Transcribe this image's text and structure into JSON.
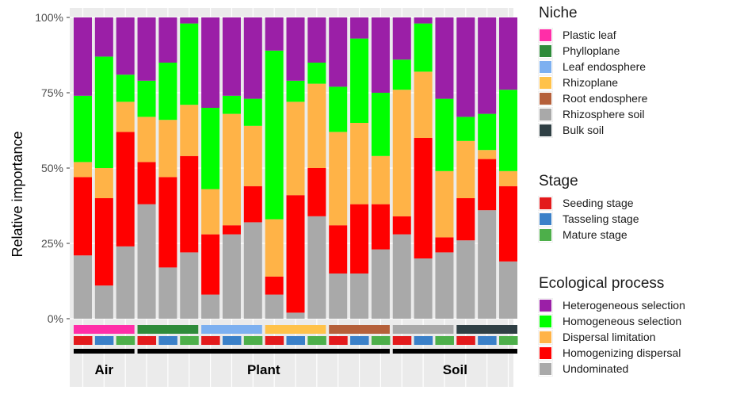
{
  "chart_data": {
    "type": "bar",
    "stacked": true,
    "ylabel": "Relative importance",
    "ylim": [
      0,
      100
    ],
    "yticks": [
      "0%",
      "25%",
      "50%",
      "75%",
      "100%"
    ],
    "groups": [
      "Air",
      "Plant",
      "Soil"
    ],
    "process_order": [
      "Undominated",
      "Homogenizing dispersal",
      "Dispersal limitation",
      "Homogeneous selection",
      "Heterogeneous selection"
    ],
    "process_colors": [
      "#a9a9a9",
      "#ff0000",
      "#ffb347",
      "#00ff00",
      "#9b1fa7"
    ],
    "bars": [
      {
        "group": "Air",
        "niche": "Plastic leaf",
        "stage": "Seeding stage",
        "values": [
          21,
          26,
          5,
          22,
          26
        ]
      },
      {
        "group": "Air",
        "niche": "Plastic leaf",
        "stage": "Tasseling stage",
        "values": [
          11,
          29,
          10,
          37,
          13
        ]
      },
      {
        "group": "Air",
        "niche": "Plastic leaf",
        "stage": "Mature stage",
        "values": [
          24,
          38,
          10,
          9,
          19
        ]
      },
      {
        "group": "Plant",
        "niche": "Phylloplane",
        "stage": "Seeding stage",
        "values": [
          38,
          14,
          15,
          12,
          21
        ]
      },
      {
        "group": "Plant",
        "niche": "Phylloplane",
        "stage": "Tasseling stage",
        "values": [
          17,
          30,
          19,
          19,
          15
        ]
      },
      {
        "group": "Plant",
        "niche": "Phylloplane",
        "stage": "Mature stage",
        "values": [
          22,
          32,
          17,
          27,
          2
        ]
      },
      {
        "group": "Plant",
        "niche": "Leaf endosphere",
        "stage": "Seeding stage",
        "values": [
          8,
          20,
          15,
          27,
          30
        ]
      },
      {
        "group": "Plant",
        "niche": "Leaf endosphere",
        "stage": "Tasseling stage",
        "values": [
          28,
          3,
          37,
          6,
          26
        ]
      },
      {
        "group": "Plant",
        "niche": "Leaf endosphere",
        "stage": "Mature stage",
        "values": [
          32,
          12,
          20,
          9,
          27
        ]
      },
      {
        "group": "Plant",
        "niche": "Rhizoplane",
        "stage": "Seeding stage",
        "values": [
          8,
          6,
          19,
          56,
          11
        ]
      },
      {
        "group": "Plant",
        "niche": "Rhizoplane",
        "stage": "Tasseling stage",
        "values": [
          2,
          39,
          31,
          7,
          21
        ]
      },
      {
        "group": "Plant",
        "niche": "Rhizoplane",
        "stage": "Mature stage",
        "values": [
          34,
          16,
          28,
          7,
          15
        ]
      },
      {
        "group": "Plant",
        "niche": "Root endosphere",
        "stage": "Seeding stage",
        "values": [
          15,
          16,
          31,
          15,
          23
        ]
      },
      {
        "group": "Plant",
        "niche": "Root endosphere",
        "stage": "Tasseling stage",
        "values": [
          15,
          23,
          27,
          28,
          7
        ]
      },
      {
        "group": "Plant",
        "niche": "Root endosphere",
        "stage": "Mature stage",
        "values": [
          23,
          15,
          16,
          21,
          25
        ]
      },
      {
        "group": "Soil",
        "niche": "Rhizosphere soil",
        "stage": "Seeding stage",
        "values": [
          28,
          6,
          42,
          10,
          14
        ]
      },
      {
        "group": "Soil",
        "niche": "Rhizosphere soil",
        "stage": "Tasseling stage",
        "values": [
          20,
          40,
          22,
          16,
          2
        ]
      },
      {
        "group": "Soil",
        "niche": "Rhizosphere soil",
        "stage": "Mature stage",
        "values": [
          22,
          5,
          22,
          24,
          27
        ]
      },
      {
        "group": "Soil",
        "niche": "Bulk soil",
        "stage": "Seeding stage",
        "values": [
          26,
          14,
          19,
          8,
          33
        ]
      },
      {
        "group": "Soil",
        "niche": "Bulk soil",
        "stage": "Tasseling stage",
        "values": [
          36,
          17,
          3,
          12,
          32
        ]
      },
      {
        "group": "Soil",
        "niche": "Bulk soil",
        "stage": "Mature stage",
        "values": [
          19,
          25,
          5,
          27,
          24
        ]
      }
    ],
    "legend_placement": "right",
    "grid": true
  },
  "legends": {
    "niche": {
      "title": "Niche",
      "items": [
        {
          "label": "Plastic leaf",
          "color": "#ff2ea8"
        },
        {
          "label": "Phylloplane",
          "color": "#2e8b3a"
        },
        {
          "label": "Leaf endosphere",
          "color": "#7db0f0"
        },
        {
          "label": "Rhizoplane",
          "color": "#ffc24a"
        },
        {
          "label": "Root endosphere",
          "color": "#b5603a"
        },
        {
          "label": "Rhizosphere soil",
          "color": "#a9a9a9"
        },
        {
          "label": "Bulk soil",
          "color": "#2f3f44"
        }
      ]
    },
    "stage": {
      "title": "Stage",
      "items": [
        {
          "label": "Seeding stage",
          "color": "#e31a1c"
        },
        {
          "label": "Tasseling stage",
          "color": "#3a80c8"
        },
        {
          "label": "Mature stage",
          "color": "#4daf4a"
        }
      ]
    },
    "process": {
      "title": "Ecological process",
      "items": [
        {
          "label": "Heterogeneous selection",
          "color": "#9b1fa7"
        },
        {
          "label": "Homogeneous selection",
          "color": "#00ff00"
        },
        {
          "label": "Dispersal limitation",
          "color": "#ffb347"
        },
        {
          "label": "Homogenizing dispersal",
          "color": "#ff0000"
        },
        {
          "label": "Undominated",
          "color": "#a9a9a9"
        }
      ]
    }
  }
}
